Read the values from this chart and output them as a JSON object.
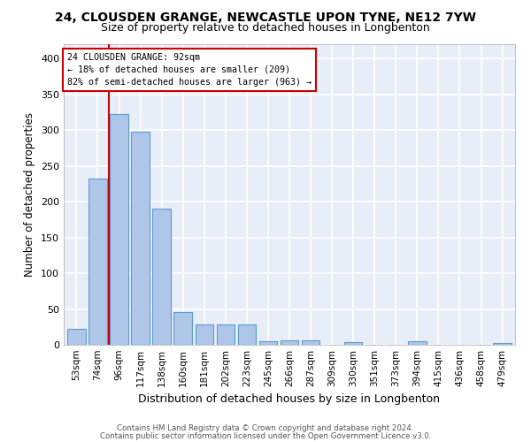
{
  "title1": "24, CLOUSDEN GRANGE, NEWCASTLE UPON TYNE, NE12 7YW",
  "title2": "Size of property relative to detached houses in Longbenton",
  "xlabel": "Distribution of detached houses by size in Longbenton",
  "ylabel": "Number of detached properties",
  "categories": [
    "53sqm",
    "74sqm",
    "96sqm",
    "117sqm",
    "138sqm",
    "160sqm",
    "181sqm",
    "202sqm",
    "223sqm",
    "245sqm",
    "266sqm",
    "287sqm",
    "309sqm",
    "330sqm",
    "351sqm",
    "373sqm",
    "394sqm",
    "415sqm",
    "436sqm",
    "458sqm",
    "479sqm"
  ],
  "values": [
    22,
    232,
    323,
    298,
    190,
    46,
    28,
    28,
    29,
    5,
    6,
    6,
    0,
    4,
    0,
    0,
    5,
    0,
    0,
    0,
    3
  ],
  "bar_color": "#aec6e8",
  "bar_edge_color": "#5b9bd5",
  "vline_x": 1.5,
  "vline_color": "#cc0000",
  "annotation_line1": "24 CLOUSDEN GRANGE: 92sqm",
  "annotation_line2": "← 18% of detached houses are smaller (209)",
  "annotation_line3": "82% of semi-detached houses are larger (963) →",
  "annotation_box_edgecolor": "#cc0000",
  "ylim": [
    0,
    420
  ],
  "yticks": [
    0,
    50,
    100,
    150,
    200,
    250,
    300,
    350,
    400
  ],
  "background_color": "#e8eef7",
  "grid_color": "#ffffff",
  "footer1": "Contains HM Land Registry data © Crown copyright and database right 2024.",
  "footer2": "Contains public sector information licensed under the Open Government Licence v3.0."
}
